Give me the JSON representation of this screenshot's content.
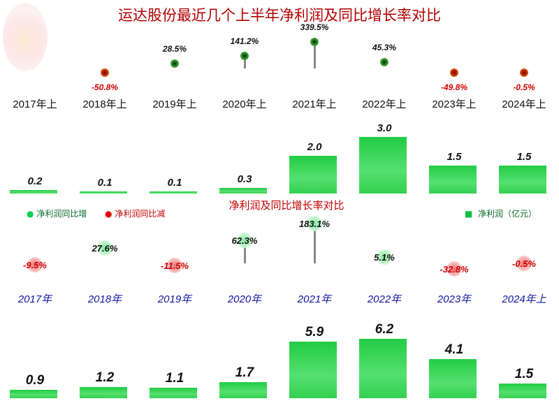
{
  "title": "运达股份最近几个上半年净利润及同比增长率对比",
  "subtitle": "净利润及同比增长率对比",
  "legend": {
    "increase": "净利润同比增",
    "decrease": "净利润同比减",
    "profit": "净利润（亿元）"
  },
  "colors": {
    "title": "#b00000",
    "bar": "#22cc44",
    "increase": "#2a8a2a",
    "decrease": "#c00000",
    "bottom_year": "#1018a0"
  },
  "chart_data": [
    {
      "type": "bar",
      "title": "运达股份最近几个上半年净利润及同比增长率对比",
      "categories": [
        "2017年上",
        "2018年上",
        "2019年上",
        "2020年上",
        "2021年上",
        "2022年上",
        "2023年上",
        "2024年上"
      ],
      "series": [
        {
          "name": "净利润（亿元）",
          "values": [
            0.2,
            0.1,
            0.1,
            0.3,
            2.0,
            3.0,
            1.5,
            1.5
          ]
        },
        {
          "values": [
            null,
            -50.8,
            28.5,
            141.2,
            339.5,
            45.3,
            -49.8,
            -0.5
          ],
          "labels": [
            "",
            "-50.8%",
            "28.5%",
            "141.2%",
            "339.5%",
            "45.3%",
            "-49.8%",
            "-0.5%"
          ]
        }
      ],
      "bar_labels": [
        "0.2",
        "0.1",
        "0.1",
        "0.3",
        "2.0",
        "3.0",
        "1.5",
        "1.5"
      ]
    },
    {
      "type": "bar",
      "title": "净利润及同比增长率对比",
      "categories": [
        "2017年",
        "2018年",
        "2019年",
        "2020年",
        "2021年",
        "2022年",
        "2023年",
        "2024年上"
      ],
      "series": [
        {
          "name": "净利润（亿元）",
          "values": [
            0.9,
            1.2,
            1.1,
            1.7,
            5.9,
            6.2,
            4.1,
            1.5
          ]
        },
        {
          "values": [
            -9.5,
            27.6,
            -11.5,
            62.3,
            183.1,
            5.1,
            -32.8,
            -0.5
          ],
          "labels": [
            "-9.5%",
            "27.6%",
            "-11.5%",
            "62.3%",
            "183.1%",
            "5.1%",
            "-32.8%",
            "-0.5%"
          ]
        }
      ],
      "bar_labels": [
        "0.9",
        "1.2",
        "1.1",
        "1.7",
        "5.9",
        "6.2",
        "4.1",
        "1.5"
      ]
    }
  ]
}
